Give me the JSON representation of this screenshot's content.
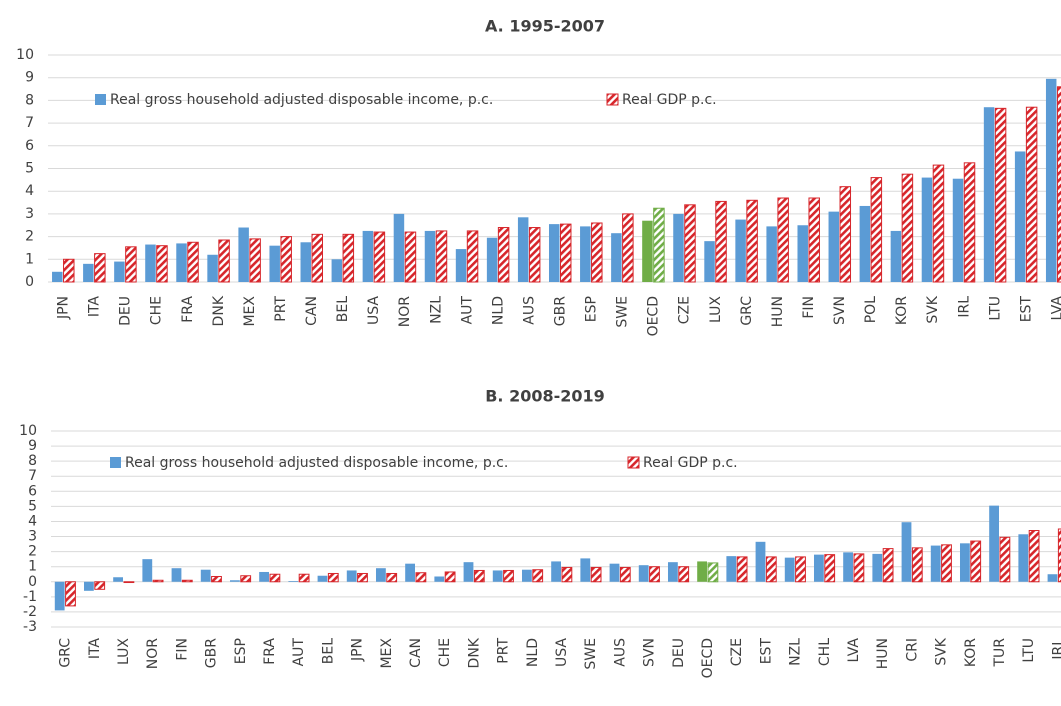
{
  "chart_data": [
    {
      "type": "bar",
      "title": "A. 1995-2007",
      "categories": [
        "JPN",
        "ITA",
        "DEU",
        "CHE",
        "FRA",
        "DNK",
        "MEX",
        "PRT",
        "CAN",
        "BEL",
        "USA",
        "NOR",
        "NZL",
        "AUT",
        "NLD",
        "AUS",
        "GBR",
        "ESP",
        "SWE",
        "OECD",
        "CZE",
        "LUX",
        "GRC",
        "HUN",
        "FIN",
        "SVN",
        "POL",
        "KOR",
        "SVK",
        "IRL",
        "LTU",
        "EST",
        "LVA"
      ],
      "series": [
        {
          "name": "Real gross household adjusted disposable income, p.c.",
          "color": "#5b9bd5",
          "hatched": false,
          "values": [
            0.45,
            0.8,
            0.9,
            1.65,
            1.7,
            1.2,
            2.4,
            1.6,
            1.75,
            1.0,
            2.25,
            3.0,
            2.25,
            1.45,
            1.95,
            2.85,
            2.55,
            2.45,
            2.15,
            2.7,
            3.0,
            1.8,
            2.75,
            2.45,
            2.5,
            3.1,
            3.35,
            2.25,
            4.6,
            4.55,
            7.7,
            5.75,
            8.95
          ]
        },
        {
          "name": "Real GDP p.c.",
          "color": "#d7262b",
          "hatched": true,
          "values": [
            1.0,
            1.25,
            1.55,
            1.6,
            1.75,
            1.85,
            1.9,
            2.0,
            2.1,
            2.1,
            2.2,
            2.2,
            2.25,
            2.25,
            2.4,
            2.4,
            2.55,
            2.6,
            3.0,
            3.25,
            3.4,
            3.55,
            3.6,
            3.7,
            3.7,
            4.2,
            4.6,
            4.75,
            5.15,
            5.25,
            7.65,
            7.7,
            8.6
          ]
        }
      ],
      "highlight": {
        "category": "OECD",
        "color": "#70ad47"
      },
      "ylim": [
        0,
        10
      ],
      "yticks": [
        0,
        1,
        2,
        3,
        4,
        5,
        6,
        7,
        8,
        9,
        10
      ],
      "grid": true
    },
    {
      "type": "bar",
      "title": "B. 2008-2019",
      "categories": [
        "GRC",
        "ITA",
        "LUX",
        "NOR",
        "FIN",
        "GBR",
        "ESP",
        "FRA",
        "AUT",
        "BEL",
        "JPN",
        "MEX",
        "CAN",
        "CHE",
        "DNK",
        "PRT",
        "NLD",
        "USA",
        "SWE",
        "AUS",
        "SVN",
        "DEU",
        "OECD",
        "CZE",
        "EST",
        "NZL",
        "CHL",
        "LVA",
        "HUN",
        "CRI",
        "SVK",
        "KOR",
        "TUR",
        "LTU",
        "IRL"
      ],
      "series": [
        {
          "name": "Real gross household adjusted disposable income, p.c.",
          "color": "#5b9bd5",
          "hatched": false,
          "values": [
            -1.9,
            -0.6,
            0.3,
            1.5,
            0.9,
            0.8,
            0.1,
            0.65,
            0.05,
            0.4,
            0.75,
            0.9,
            1.2,
            0.35,
            1.3,
            0.75,
            0.8,
            1.35,
            1.55,
            1.2,
            1.1,
            1.3,
            1.35,
            1.7,
            2.65,
            1.6,
            1.8,
            1.95,
            1.85,
            3.95,
            2.4,
            2.55,
            5.05,
            3.15,
            0.5
          ]
        },
        {
          "name": "Real GDP p.c.",
          "color": "#d7262b",
          "hatched": true,
          "values": [
            -1.6,
            -0.5,
            -0.05,
            0.1,
            0.1,
            0.35,
            0.4,
            0.5,
            0.5,
            0.55,
            0.55,
            0.55,
            0.6,
            0.65,
            0.75,
            0.75,
            0.8,
            0.95,
            0.95,
            0.95,
            1.0,
            1.0,
            1.25,
            1.65,
            1.65,
            1.65,
            1.8,
            1.85,
            2.2,
            2.25,
            2.45,
            2.7,
            2.95,
            3.4,
            3.5
          ]
        }
      ],
      "highlight": {
        "category": "OECD",
        "color": "#70ad47"
      },
      "ylim": [
        -3,
        10
      ],
      "yticks": [
        -3,
        -2,
        -1,
        0,
        1,
        2,
        3,
        4,
        5,
        6,
        7,
        8,
        9,
        10
      ],
      "grid": true
    }
  ]
}
